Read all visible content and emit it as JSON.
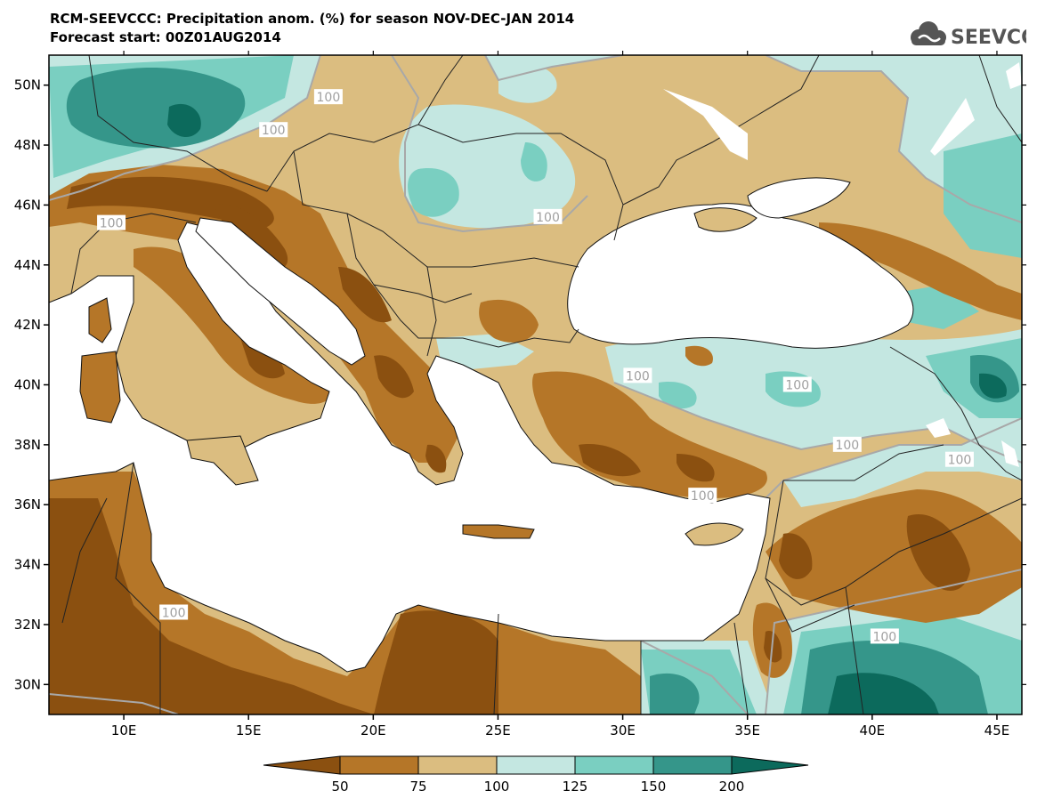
{
  "header": {
    "title_line1": "RCM-SEEVCCC: Precipitation anom. (%) for season NOV-DEC-JAN 2014",
    "title_line2": "Forecast start: 00Z01AUG2014",
    "logo_text": "SEEVCCC"
  },
  "map": {
    "lon_range": [
      7,
      46
    ],
    "lat_range": [
      29,
      51
    ],
    "lon_ticks": [
      {
        "value": 10,
        "label": "10E"
      },
      {
        "value": 15,
        "label": "15E"
      },
      {
        "value": 20,
        "label": "20E"
      },
      {
        "value": 25,
        "label": "25E"
      },
      {
        "value": 30,
        "label": "30E"
      },
      {
        "value": 35,
        "label": "35E"
      },
      {
        "value": 40,
        "label": "40E"
      },
      {
        "value": 45,
        "label": "45E"
      }
    ],
    "lat_ticks": [
      {
        "value": 30,
        "label": "30N"
      },
      {
        "value": 32,
        "label": "32N"
      },
      {
        "value": 34,
        "label": "34N"
      },
      {
        "value": 36,
        "label": "36N"
      },
      {
        "value": 38,
        "label": "38N"
      },
      {
        "value": 40,
        "label": "40N"
      },
      {
        "value": 42,
        "label": "42N"
      },
      {
        "value": 44,
        "label": "44N"
      },
      {
        "value": 46,
        "label": "46N"
      },
      {
        "value": 48,
        "label": "48N"
      },
      {
        "value": 50,
        "label": "50N"
      }
    ],
    "contour_label_text": "100",
    "contour_labels": [
      {
        "lon": 18.2,
        "lat": 49.6
      },
      {
        "lon": 16.0,
        "lat": 48.5
      },
      {
        "lon": 9.5,
        "lat": 45.4
      },
      {
        "lon": 27.0,
        "lat": 45.6
      },
      {
        "lon": 30.6,
        "lat": 40.3
      },
      {
        "lon": 37.0,
        "lat": 40.0
      },
      {
        "lon": 39.0,
        "lat": 38.0
      },
      {
        "lon": 33.2,
        "lat": 36.3
      },
      {
        "lon": 43.5,
        "lat": 37.5
      },
      {
        "lon": 12.0,
        "lat": 32.4
      },
      {
        "lon": 40.5,
        "lat": 31.6
      }
    ],
    "colors": {
      "lt50": "#8b5010",
      "b50_75": "#b57628",
      "b75_100": "#dbbd80",
      "b100_125": "#c4e7e1",
      "b125_150": "#7acfc1",
      "b150_200": "#35968a",
      "gt200": "#0c6a5c",
      "contour": "#a8a8a8",
      "sea": "#ffffff"
    }
  },
  "legend": {
    "labels": [
      "50",
      "75",
      "100",
      "125",
      "150",
      "200"
    ],
    "colors": [
      "#8b5010",
      "#b57628",
      "#dbbd80",
      "#c4e7e1",
      "#7acfc1",
      "#35968a",
      "#0c6a5c"
    ]
  }
}
